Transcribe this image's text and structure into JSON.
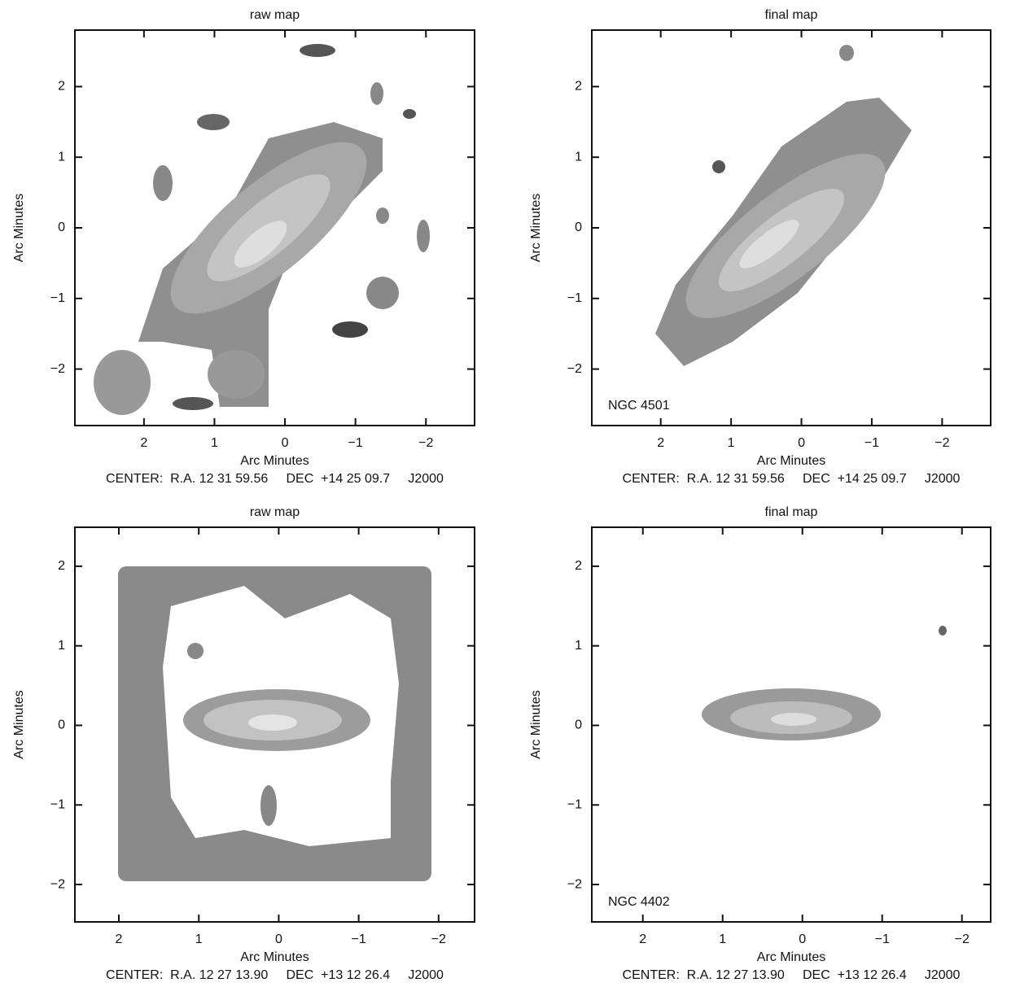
{
  "chart_data": [
    {
      "type": "contour",
      "title": "raw map",
      "xlabel": "Arc Minutes",
      "ylabel": "Arc Minutes",
      "footer": "CENTER:  R.A. 12 31 59.56     DEC  +14 25 09.7     J2000",
      "xlim": [
        2.98,
        -2.69
      ],
      "ylim": [
        -2.8,
        2.8
      ],
      "xticks": [
        2,
        1,
        0,
        {
          "value": -1,
          "label": "−1"
        },
        {
          "value": -2,
          "label": "−2"
        }
      ],
      "yticks": [
        {
          "value": -2,
          "label": "−2"
        },
        {
          "value": -1,
          "label": "−1"
        },
        0,
        1,
        2
      ]
    },
    {
      "type": "contour",
      "title": "final map",
      "xlabel": "Arc Minutes",
      "ylabel": "Arc Minutes",
      "footer": "CENTER:  R.A. 12 31 59.56     DEC  +14 25 09.7     J2000",
      "annotation": "NGC 4501",
      "xlim": [
        2.98,
        -2.69
      ],
      "ylim": [
        -2.8,
        2.8
      ],
      "xticks": [
        2,
        1,
        0,
        {
          "value": -1,
          "label": "−1"
        },
        {
          "value": -2,
          "label": "−2"
        }
      ],
      "yticks": [
        {
          "value": -2,
          "label": "−2"
        },
        {
          "value": -1,
          "label": "−1"
        },
        0,
        1,
        2
      ]
    },
    {
      "type": "contour",
      "title": "raw map",
      "xlabel": "Arc Minutes",
      "ylabel": "Arc Minutes",
      "footer": "CENTER:  R.A. 12 27 13.90     DEC  +13 12 26.4     J2000",
      "xlim": [
        2.55,
        -2.45
      ],
      "ylim": [
        -2.47,
        2.49
      ],
      "xticks": [
        2,
        1,
        0,
        {
          "value": -1,
          "label": "−1"
        },
        {
          "value": -2,
          "label": "−2"
        }
      ],
      "yticks": [
        {
          "value": -2,
          "label": "−2"
        },
        {
          "value": -1,
          "label": "−1"
        },
        0,
        1,
        2
      ]
    },
    {
      "type": "contour",
      "title": "final map",
      "xlabel": "Arc Minutes",
      "ylabel": "Arc Minutes",
      "footer": "CENTER:  R.A. 12 27 13.90     DEC  +13 12 26.4     J2000",
      "annotation": "NGC 4402",
      "xlim": [
        2.64,
        -2.36
      ],
      "ylim": [
        -2.47,
        2.49
      ],
      "xticks": [
        2,
        1,
        0,
        {
          "value": -1,
          "label": "−1"
        },
        {
          "value": -2,
          "label": "−2"
        }
      ],
      "yticks": [
        {
          "value": -2,
          "label": "−2"
        },
        {
          "value": -1,
          "label": "−1"
        },
        0,
        1,
        2
      ]
    }
  ]
}
